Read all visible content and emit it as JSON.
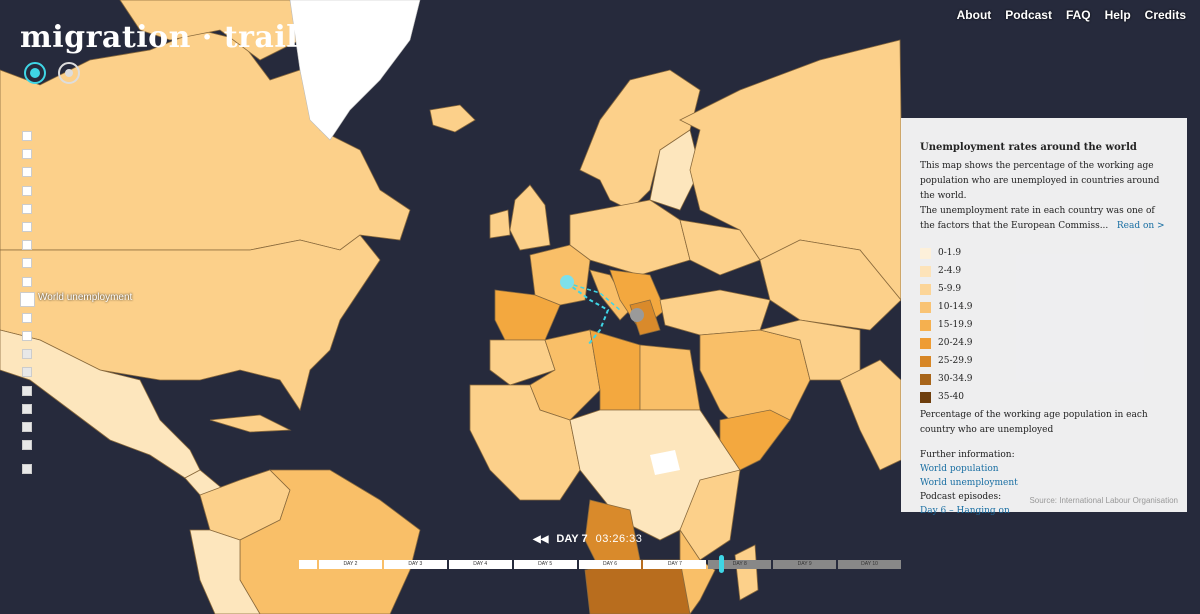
{
  "header": {
    "logo_text": "migration · trail",
    "mode_icons": [
      "location-target-icon",
      "location-target-outline-icon"
    ]
  },
  "nav": {
    "items": [
      "About",
      "Podcast",
      "FAQ",
      "Help",
      "Credits"
    ]
  },
  "layers": {
    "count": 19,
    "active_label": "World unemployment"
  },
  "info_panel": {
    "title": "Unemployment rates around the world",
    "description": "This map shows the percentage of the working age population who are unemployed in countries around the world.",
    "description2": "The unemployment rate in each country was one of the factors that the European Commiss...",
    "read_on": "Read on >",
    "legend": [
      {
        "label": "0-1.9",
        "color": "#fdf0da"
      },
      {
        "label": "2-4.9",
        "color": "#fde3b9"
      },
      {
        "label": "5-9.9",
        "color": "#fcd598"
      },
      {
        "label": "10-14.9",
        "color": "#f9c374"
      },
      {
        "label": "15-19.9",
        "color": "#f5b04f"
      },
      {
        "label": "20-24.9",
        "color": "#ee9c34"
      },
      {
        "label": "25-29.9",
        "color": "#d78626"
      },
      {
        "label": "30-34.9",
        "color": "#a8651a"
      },
      {
        "label": "35-40",
        "color": "#6e3e0d"
      }
    ],
    "legend_caption": "Percentage of the working age population in each country who are unemployed",
    "further_heading": "Further information:",
    "links": [
      "World population",
      "World unemployment"
    ],
    "podcast_heading": "Podcast episodes:",
    "podcast_link": "Day 6 – Hanging on",
    "source": "Source: International Labour Organisation"
  },
  "timeline": {
    "day_label": "DAY 7",
    "time": "03:26:33",
    "segments": [
      "",
      "DAY 2",
      "DAY 3",
      "DAY 4",
      "DAY 5",
      "DAY 6",
      "DAY 7",
      "DAY 8",
      "DAY 9",
      "DAY 10"
    ],
    "current_day": 7
  },
  "colors": {
    "ocean": "#262a3c",
    "accent": "#3fd6e6"
  }
}
